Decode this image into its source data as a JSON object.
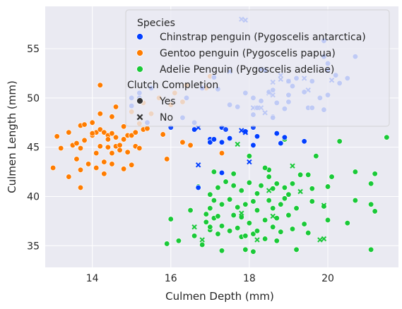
{
  "chart_data": {
    "type": "scatter",
    "xlabel": "Culmen Depth (mm)",
    "ylabel": "Culmen Length (mm)",
    "xlim": [
      12.8,
      21.8
    ],
    "ylim": [
      32.8,
      59.3
    ],
    "xticks": [
      14,
      16,
      18,
      20
    ],
    "yticks": [
      35,
      40,
      45,
      50,
      55
    ],
    "grid": true,
    "legend_position": "top-right",
    "hue_title": "Species",
    "style_title": "Clutch Completion",
    "series": [
      {
        "name": "Chinstrap penguin (Pygoscelis antarctica)",
        "color": "#023eff",
        "points": [
          [
            16.6,
            46.8,
            "Yes"
          ],
          [
            17.0,
            45.8,
            "Yes"
          ],
          [
            17.0,
            45.5,
            "Yes"
          ],
          [
            17.3,
            47.0,
            "Yes"
          ],
          [
            17.3,
            45.5,
            "Yes"
          ],
          [
            17.9,
            46.6,
            "Yes"
          ],
          [
            18.2,
            46.1,
            "Yes"
          ],
          [
            18.7,
            46.4,
            "Yes"
          ],
          [
            18.8,
            45.4,
            "Yes"
          ],
          [
            18.9,
            46.0,
            "Yes"
          ],
          [
            19.4,
            45.6,
            "Yes"
          ],
          [
            16.7,
            40.9,
            "Yes"
          ],
          [
            17.3,
            42.4,
            "Yes"
          ],
          [
            17.5,
            45.9,
            "Yes"
          ],
          [
            17.1,
            45.8,
            "Yes"
          ],
          [
            18.1,
            45.2,
            "Yes"
          ],
          [
            16.7,
            43.2,
            "No"
          ],
          [
            17.8,
            46.7,
            "No"
          ],
          [
            18.0,
            43.5,
            "No"
          ],
          [
            16.7,
            47.0,
            "No"
          ],
          [
            17.9,
            46.5,
            "No"
          ]
        ]
      },
      {
        "name": "Gentoo penguin (Pygoscelis papua)",
        "color": "#ff7c00",
        "points": [
          [
            13.0,
            42.9
          ],
          [
            13.1,
            46.1
          ],
          [
            13.2,
            44.9
          ],
          [
            13.4,
            46.5
          ],
          [
            13.4,
            42.0
          ],
          [
            13.5,
            45.2
          ],
          [
            13.6,
            43.8
          ],
          [
            13.6,
            45.4
          ],
          [
            13.7,
            42.7
          ],
          [
            13.7,
            44.9
          ],
          [
            13.7,
            47.2
          ],
          [
            13.8,
            45.7
          ],
          [
            13.8,
            47.3
          ],
          [
            13.9,
            43.3
          ],
          [
            14.0,
            47.5
          ],
          [
            14.0,
            46.2
          ],
          [
            14.1,
            42.9
          ],
          [
            14.1,
            46.5
          ],
          [
            14.1,
            44.4
          ],
          [
            14.2,
            46.8
          ],
          [
            14.2,
            48.4
          ],
          [
            14.3,
            43.5
          ],
          [
            14.3,
            42.3
          ],
          [
            14.3,
            46.5
          ],
          [
            14.4,
            45.0
          ],
          [
            14.4,
            46.2
          ],
          [
            14.5,
            48.1
          ],
          [
            14.5,
            43.3
          ],
          [
            14.5,
            46.4
          ],
          [
            14.5,
            44.4
          ],
          [
            14.6,
            45.1
          ],
          [
            14.6,
            46.0
          ],
          [
            14.6,
            49.1
          ],
          [
            14.7,
            45.2
          ],
          [
            14.7,
            44.7
          ],
          [
            14.8,
            45.8
          ],
          [
            14.8,
            47.1
          ],
          [
            14.9,
            46.2
          ],
          [
            14.9,
            44.5
          ],
          [
            15.0,
            46.2
          ],
          [
            15.0,
            48.6
          ],
          [
            15.1,
            45.1
          ],
          [
            15.1,
            46.5
          ],
          [
            15.2,
            44.9
          ],
          [
            15.2,
            47.4
          ],
          [
            15.3,
            46.8
          ],
          [
            15.3,
            49.5
          ],
          [
            15.4,
            46.9
          ],
          [
            15.5,
            48.4
          ],
          [
            15.7,
            50.0
          ],
          [
            15.8,
            46.3
          ],
          [
            15.9,
            43.8
          ],
          [
            16.0,
            49.3
          ],
          [
            16.1,
            50.5
          ],
          [
            16.3,
            49.6
          ],
          [
            16.4,
            51.3
          ],
          [
            16.5,
            45.2
          ],
          [
            16.9,
            51.0
          ],
          [
            17.0,
            52.2
          ],
          [
            17.3,
            44.4
          ],
          [
            14.2,
            51.3
          ],
          [
            14.4,
            45.8
          ],
          [
            14.8,
            42.8
          ],
          [
            14.2,
            45.1
          ],
          [
            14.0,
            46.4
          ],
          [
            15.0,
            43.2
          ],
          [
            16.3,
            45.5
          ],
          [
            13.7,
            40.9
          ]
        ]
      },
      {
        "name": "Adelie Penguin (Pygoscelis adeliae)",
        "color": "#1ac938",
        "points": [
          [
            15.9,
            35.2
          ],
          [
            16.0,
            37.7
          ],
          [
            16.2,
            35.5
          ],
          [
            16.5,
            38.6
          ],
          [
            16.6,
            36.0
          ],
          [
            16.7,
            41.0
          ],
          [
            16.8,
            35.1
          ],
          [
            16.9,
            38.2
          ],
          [
            17.0,
            36.6
          ],
          [
            17.0,
            38.8
          ],
          [
            17.0,
            40.2
          ],
          [
            17.1,
            37.8
          ],
          [
            17.1,
            39.6
          ],
          [
            17.1,
            42.5
          ],
          [
            17.2,
            36.2
          ],
          [
            17.2,
            38.0
          ],
          [
            17.2,
            40.9
          ],
          [
            17.3,
            34.5
          ],
          [
            17.3,
            37.0
          ],
          [
            17.3,
            39.2
          ],
          [
            17.4,
            41.5
          ],
          [
            17.5,
            36.5
          ],
          [
            17.5,
            39.7
          ],
          [
            17.6,
            38.1
          ],
          [
            17.6,
            41.1
          ],
          [
            17.7,
            36.8
          ],
          [
            17.7,
            38.9
          ],
          [
            17.8,
            35.9
          ],
          [
            17.8,
            37.9
          ],
          [
            17.8,
            40.6
          ],
          [
            17.9,
            34.6
          ],
          [
            17.9,
            36.0
          ],
          [
            17.9,
            39.2
          ],
          [
            18.0,
            41.4
          ],
          [
            18.0,
            37.3
          ],
          [
            18.0,
            44.1
          ],
          [
            18.1,
            39.5
          ],
          [
            18.1,
            34.4
          ],
          [
            18.1,
            36.2
          ],
          [
            18.2,
            38.6
          ],
          [
            18.2,
            40.3
          ],
          [
            18.3,
            41.1
          ],
          [
            18.4,
            35.7
          ],
          [
            18.4,
            37.6
          ],
          [
            18.5,
            39.6
          ],
          [
            18.5,
            42.0
          ],
          [
            18.5,
            42.7
          ],
          [
            18.6,
            36.9
          ],
          [
            18.6,
            38.8
          ],
          [
            18.6,
            40.8
          ],
          [
            18.7,
            35.5
          ],
          [
            18.7,
            37.8
          ],
          [
            18.7,
            41.3
          ],
          [
            18.8,
            39.2
          ],
          [
            18.8,
            36.4
          ],
          [
            18.9,
            40.9
          ],
          [
            18.9,
            45.8
          ],
          [
            19.0,
            38.1
          ],
          [
            19.0,
            40.2
          ],
          [
            19.1,
            36.7
          ],
          [
            19.1,
            41.3
          ],
          [
            19.2,
            34.6
          ],
          [
            19.2,
            38.8
          ],
          [
            19.3,
            42.2
          ],
          [
            19.4,
            37.2
          ],
          [
            19.5,
            36.3
          ],
          [
            19.5,
            42.2
          ],
          [
            19.6,
            40.8
          ],
          [
            19.7,
            44.1
          ],
          [
            19.9,
            39.0
          ],
          [
            20.0,
            41.0
          ],
          [
            20.0,
            37.6
          ],
          [
            20.1,
            42.0
          ],
          [
            20.3,
            45.6
          ],
          [
            20.5,
            37.3
          ],
          [
            20.7,
            39.6
          ],
          [
            20.7,
            42.5
          ],
          [
            21.1,
            41.3
          ],
          [
            21.1,
            34.6
          ],
          [
            21.1,
            39.2
          ],
          [
            21.2,
            38.5
          ],
          [
            21.2,
            42.3
          ],
          [
            21.5,
            46.0
          ],
          [
            18.4,
            42.9
          ],
          [
            17.6,
            42.3
          ],
          [
            18.9,
            39.8
          ],
          [
            19.6,
            39.5
          ],
          [
            18.2,
            36.5
          ],
          [
            17.0,
            36.9
          ],
          [
            16.9,
            37.4
          ]
        ]
      }
    ],
    "no_clutch_points": [
      [
        16.6,
        36.9,
        2
      ],
      [
        16.8,
        35.6,
        2
      ],
      [
        17.8,
        38.3,
        2
      ],
      [
        18.2,
        35.6,
        2
      ],
      [
        18.5,
        40.6,
        2
      ],
      [
        18.6,
        38.0,
        2
      ],
      [
        19.1,
        43.1,
        2
      ],
      [
        19.3,
        40.5,
        2
      ],
      [
        19.8,
        35.6,
        2
      ],
      [
        19.9,
        35.7,
        2
      ],
      [
        19.9,
        39.1,
        2
      ],
      [
        17.7,
        45.3,
        2
      ],
      [
        17.9,
        57.9,
        0
      ],
      [
        19.4,
        52.0,
        0
      ],
      [
        18.3,
        52.9,
        0
      ],
      [
        18.1,
        49.0,
        0
      ],
      [
        18.5,
        50.5,
        0
      ],
      [
        18.8,
        51.9,
        0
      ],
      [
        19.5,
        50.8,
        0
      ],
      [
        20.1,
        51.8,
        0
      ],
      [
        17.9,
        46.5,
        0
      ],
      [
        18.4,
        48.5,
        0
      ],
      [
        17.5,
        52.7,
        0
      ],
      [
        19.0,
        51.7,
        0
      ]
    ],
    "faded_points": [
      [
        17.8,
        58.0,
        "No"
      ],
      [
        18.4,
        52.8,
        "Yes"
      ],
      [
        18.6,
        51.6,
        "No"
      ],
      [
        18.8,
        52.3,
        "No"
      ],
      [
        19.0,
        51.7,
        "Yes"
      ],
      [
        19.1,
        51.2,
        "Yes"
      ],
      [
        19.2,
        52.0,
        "Yes"
      ],
      [
        19.4,
        50.6,
        "Yes"
      ],
      [
        19.6,
        51.7,
        "Yes"
      ],
      [
        19.8,
        50.0,
        "Yes"
      ],
      [
        19.9,
        54.2,
        "Yes"
      ],
      [
        20.0,
        50.3,
        "Yes"
      ],
      [
        20.2,
        52.3,
        "Yes"
      ],
      [
        20.3,
        51.5,
        "Yes"
      ],
      [
        20.5,
        52.0,
        "Yes"
      ],
      [
        20.7,
        54.2,
        "Yes"
      ],
      [
        17.2,
        50.9,
        "Yes"
      ],
      [
        17.5,
        49.3,
        "Yes"
      ],
      [
        17.7,
        49.1,
        "Yes"
      ],
      [
        17.9,
        50.5,
        "Yes"
      ],
      [
        18.1,
        50.0,
        "Yes"
      ],
      [
        18.2,
        49.0,
        "Yes"
      ],
      [
        18.3,
        49.7,
        "Yes"
      ],
      [
        18.5,
        50.6,
        "Yes"
      ],
      [
        18.6,
        50.8,
        "Yes"
      ],
      [
        18.7,
        49.5,
        "Yes"
      ],
      [
        18.9,
        48.9,
        "Yes"
      ],
      [
        19.0,
        49.6,
        "Yes"
      ],
      [
        19.5,
        49.0,
        "Yes"
      ],
      [
        19.6,
        49.0,
        "Yes"
      ],
      [
        19.9,
        55.8,
        "Yes"
      ],
      [
        20.0,
        53.5,
        "Yes"
      ],
      [
        17.4,
        46.8,
        "Yes"
      ],
      [
        18.1,
        47.0,
        "Yes"
      ],
      [
        18.6,
        48.1,
        "Yes"
      ],
      [
        19.9,
        48.8,
        "Yes"
      ],
      [
        20.0,
        52.8,
        "Yes"
      ],
      [
        16.3,
        48.0,
        "Yes"
      ],
      [
        16.6,
        47.5,
        "Yes"
      ],
      [
        16.0,
        47.0,
        "Yes"
      ],
      [
        15.4,
        47.5,
        "Yes"
      ],
      [
        15.2,
        50.5,
        "Yes"
      ],
      [
        15.0,
        49.2,
        "Yes"
      ],
      [
        15.0,
        50.0,
        "Yes"
      ],
      [
        15.2,
        50.0,
        "Yes"
      ],
      [
        15.5,
        51.0,
        "Yes"
      ],
      [
        16.4,
        50.0,
        "Yes"
      ],
      [
        16.8,
        51.0,
        "Yes"
      ],
      [
        17.1,
        52.1,
        "Yes"
      ],
      [
        18.3,
        49.0,
        "No"
      ],
      [
        18.6,
        50.3,
        "No"
      ],
      [
        18.1,
        48.3,
        "Yes"
      ],
      [
        19.0,
        50.3,
        "Yes"
      ],
      [
        18.6,
        48.0,
        "Yes"
      ]
    ],
    "legend": {
      "hue_title": "Species",
      "hue_items": [
        {
          "label": "Chinstrap penguin (Pygoscelis antarctica)",
          "color": "#023eff"
        },
        {
          "label": "Gentoo penguin (Pygoscelis papua)",
          "color": "#ff7c00"
        },
        {
          "label": "Adelie Penguin (Pygoscelis adeliae)",
          "color": "#1ac938"
        }
      ],
      "style_title": "Clutch Completion",
      "style_items": [
        {
          "label": "Yes",
          "marker": "circle"
        },
        {
          "label": "No",
          "marker": "x"
        }
      ]
    },
    "colors": {
      "background": "#eaeaf2",
      "grid": "#ffffff",
      "legend_bg": "#eaeaf2",
      "text": "#262626"
    }
  }
}
